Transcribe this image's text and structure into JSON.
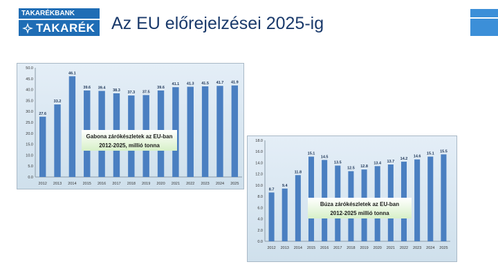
{
  "header": {
    "bank_name": "TAKARÉKBANK",
    "logo_word": "TAKARÉK",
    "title": "Az EU előrejelzései 2025-ig"
  },
  "colors": {
    "brand": "#1f6db5",
    "accent": "#3c8fd8",
    "title": "#1a3a6b",
    "bar": "#4a7fc1"
  },
  "chart_data": [
    {
      "type": "bar",
      "title": "Gabona zárókészletek az EU-ban 2012-2025, millió tonna",
      "title_lines": [
        "Gabona zárókészletek az EU-ban",
        "2012-2025, millió tonna"
      ],
      "categories": [
        "2012",
        "2013",
        "2014",
        "2015",
        "2016",
        "2017",
        "2018",
        "2019",
        "2020",
        "2021",
        "2022",
        "2023",
        "2024",
        "2025"
      ],
      "values": [
        27.6,
        33.2,
        46.1,
        39.6,
        39.4,
        38.3,
        37.3,
        37.5,
        39.6,
        41.1,
        41.3,
        41.5,
        41.7,
        41.9
      ],
      "value_labels": [
        "27.6",
        "33.2",
        "46.1",
        "39.6",
        "39.4",
        "38.3",
        "37.3",
        "37.5",
        "39.6",
        "41.1",
        "41.3",
        "41.5",
        "41.7",
        "41.9"
      ],
      "ylim": [
        0,
        50
      ],
      "yticks": [
        "0.0",
        "5.0",
        "10.0",
        "15.0",
        "20.0",
        "25.0",
        "30.0",
        "35.0",
        "40.0",
        "45.0",
        "50.0"
      ],
      "xlabel": "",
      "ylabel": "",
      "grid": false
    },
    {
      "type": "bar",
      "title": "Búza zárókészletek az EU-ban 2012-2025 millió tonna",
      "title_lines": [
        "Búza zárókészletek az EU-ban",
        "2012-2025 millió tonna"
      ],
      "categories": [
        "2012",
        "2013",
        "2014",
        "2015",
        "2016",
        "2017",
        "2018",
        "2019",
        "2020",
        "2021",
        "2022",
        "2023",
        "2024",
        "2025"
      ],
      "values": [
        8.7,
        9.4,
        11.8,
        15.1,
        14.5,
        13.5,
        12.5,
        12.8,
        13.4,
        13.7,
        14.2,
        14.6,
        15.1,
        15.5
      ],
      "value_labels": [
        "8.7",
        "9.4",
        "11.8",
        "15.1",
        "14.5",
        "13.5",
        "12.5",
        "12.8",
        "13.4",
        "13.7",
        "14.2",
        "14.6",
        "15.1",
        "15.5"
      ],
      "ylim": [
        0,
        18
      ],
      "yticks": [
        "0.0",
        "2.0",
        "4.0",
        "6.0",
        "8.0",
        "10.0",
        "12.0",
        "14.0",
        "16.0",
        "18.0"
      ],
      "xlabel": "",
      "ylabel": "",
      "grid": false
    }
  ]
}
